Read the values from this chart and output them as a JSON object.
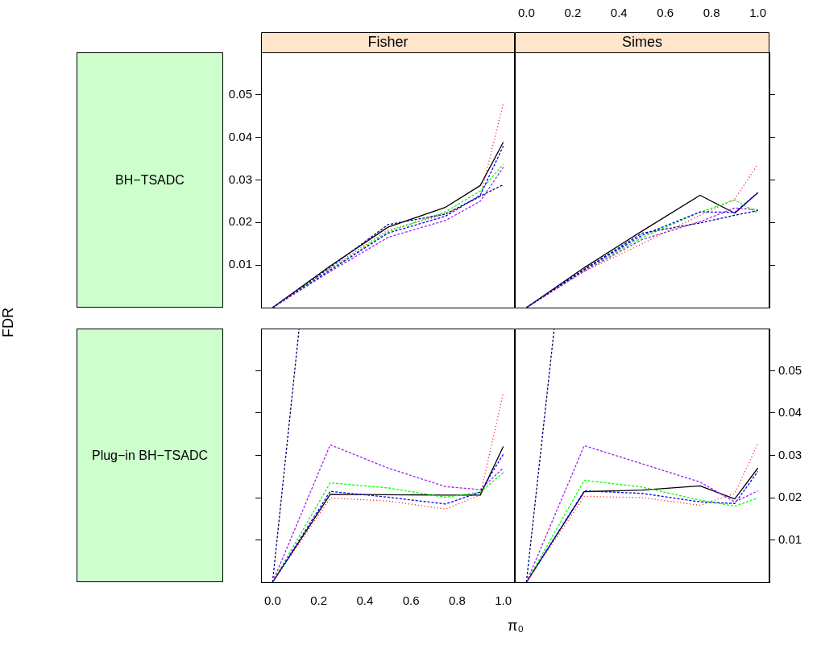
{
  "chart_data": [
    {
      "type": "line",
      "title": "Fisher",
      "subtitle": "BH−TSADC",
      "ylabel": "FDR",
      "x": [
        0,
        0.25,
        0.5,
        0.75,
        0.9,
        1
      ],
      "xlim": [
        -0.05,
        1.05
      ],
      "ylim": [
        0,
        0.06
      ],
      "xticks": [
        {
          "value": 0,
          "label": null
        },
        {
          "value": 0.2,
          "label": null
        },
        {
          "value": 0.4,
          "label": null
        },
        {
          "value": 0.6,
          "label": null
        },
        {
          "value": 0.8,
          "label": null
        },
        {
          "value": 1,
          "label": null
        }
      ],
      "yticks": [
        0.01,
        0.02,
        0.03,
        0.04,
        0.05
      ],
      "tick_labels": "y",
      "marker": "none",
      "series": [
        {
          "color": "#000000",
          "line_style": "solid",
          "values": [
            0,
            0.0098,
            0.0189,
            0.0236,
            0.0287,
            0.0389
          ]
        },
        {
          "color": "#ff0000",
          "line_style": "dotted",
          "values": [
            0,
            0.0093,
            0.0182,
            0.022,
            0.026,
            0.048
          ]
        },
        {
          "color": "#00ff00",
          "line_style": "dashed",
          "values": [
            0,
            0.009,
            0.0178,
            0.0225,
            0.0274,
            0.0337
          ]
        },
        {
          "color": "#0000ff",
          "line_style": "dashed",
          "values": [
            0,
            0.0088,
            0.0175,
            0.0215,
            0.0264,
            0.038
          ]
        },
        {
          "color": "#a020f0",
          "line_style": "dashed",
          "values": [
            0,
            0.0085,
            0.0165,
            0.0205,
            0.025,
            0.033
          ]
        },
        {
          "color": "#000080",
          "line_style": "dashed",
          "values": [
            0,
            0.0095,
            0.0195,
            0.022,
            0.0262,
            0.0289
          ]
        }
      ]
    },
    {
      "type": "line",
      "title": "Simes",
      "x": [
        0,
        0.25,
        0.5,
        0.75,
        0.9,
        1
      ],
      "xlim": [
        -0.05,
        1.05
      ],
      "ylim": [
        0,
        0.06
      ],
      "xticks": [
        {
          "value": 0,
          "label": "0.0"
        },
        {
          "value": 0.2,
          "label": "0.2"
        },
        {
          "value": 0.4,
          "label": "0.4"
        },
        {
          "value": 0.6,
          "label": "0.6"
        },
        {
          "value": 0.8,
          "label": "0.8"
        },
        {
          "value": 1,
          "label": "1.0"
        }
      ],
      "yticks": [
        {
          "value": 0.01,
          "label": null
        },
        {
          "value": 0.02,
          "label": null
        },
        {
          "value": 0.03,
          "label": null
        },
        {
          "value": 0.04,
          "label": null
        },
        {
          "value": 0.05,
          "label": null
        }
      ],
      "tick_labels": "x",
      "marker": "none",
      "series": [
        {
          "color": "#000000",
          "line_style": "solid",
          "values": [
            0,
            0.0094,
            0.018,
            0.0264,
            0.0222,
            0.027
          ]
        },
        {
          "color": "#ff0000",
          "line_style": "dotted",
          "values": [
            0,
            0.0085,
            0.015,
            0.0217,
            0.0255,
            0.0337
          ]
        },
        {
          "color": "#00ff00",
          "line_style": "dashed",
          "values": [
            0,
            0.0088,
            0.0165,
            0.0224,
            0.0253,
            0.0222
          ]
        },
        {
          "color": "#0000ff",
          "line_style": "dashed",
          "values": [
            0,
            0.009,
            0.017,
            0.0225,
            0.0224,
            0.027
          ]
        },
        {
          "color": "#a020f0",
          "line_style": "dashed",
          "values": [
            0,
            0.0086,
            0.016,
            0.0202,
            0.0234,
            0.023
          ]
        },
        {
          "color": "#000080",
          "line_style": "dashed",
          "values": [
            0,
            0.009,
            0.0175,
            0.0199,
            0.0217,
            0.0228
          ]
        }
      ]
    },
    {
      "type": "line",
      "subtitle": "Plug−in BH−TSADC",
      "xlabel": "π₀",
      "x": [
        0,
        0.25,
        0.5,
        0.75,
        0.9,
        1
      ],
      "xlim": [
        -0.05,
        1.05
      ],
      "ylim": [
        0,
        0.06
      ],
      "xticks": [
        {
          "value": 0,
          "label": "0.0"
        },
        {
          "value": 0.2,
          "label": "0.2"
        },
        {
          "value": 0.4,
          "label": "0.4"
        },
        {
          "value": 0.6,
          "label": "0.6"
        },
        {
          "value": 0.8,
          "label": "0.8"
        },
        {
          "value": 1,
          "label": "1.0"
        }
      ],
      "yticks": [
        {
          "value": 0.01,
          "label": null
        },
        {
          "value": 0.02,
          "label": null
        },
        {
          "value": 0.03,
          "label": null
        },
        {
          "value": 0.04,
          "label": null
        },
        {
          "value": 0.05,
          "label": null
        }
      ],
      "tick_labels": "x",
      "marker": "none",
      "series": [
        {
          "color": "#000000",
          "line_style": "solid",
          "values": [
            0,
            0.0208,
            0.0207,
            0.0206,
            0.0206,
            0.0321
          ]
        },
        {
          "color": "#ff0000",
          "line_style": "dotted",
          "values": [
            0,
            0.0199,
            0.0192,
            0.0173,
            0.0206,
            0.0448
          ]
        },
        {
          "color": "#00ff00",
          "line_style": "dashed",
          "values": [
            0,
            0.0235,
            0.0223,
            0.0201,
            0.0213,
            0.0259
          ]
        },
        {
          "color": "#0000ff",
          "line_style": "dashed",
          "values": [
            0,
            0.0215,
            0.0201,
            0.0185,
            0.0213,
            0.0303
          ]
        },
        {
          "color": "#a020f0",
          "line_style": "dashed",
          "values": [
            0,
            0.0325,
            0.027,
            0.0226,
            0.0219,
            0.027
          ]
        },
        {
          "color": "#000080",
          "line_style": "dashed",
          "x": [
            0,
            0.115
          ],
          "values": [
            0,
            0.06
          ]
        }
      ]
    },
    {
      "type": "line",
      "x": [
        0,
        0.25,
        0.5,
        0.75,
        0.9,
        1
      ],
      "xlim": [
        -0.05,
        1.05
      ],
      "ylim": [
        0,
        0.06
      ],
      "xticks": [
        {
          "value": 0,
          "label": null
        },
        {
          "value": 0.2,
          "label": null
        },
        {
          "value": 0.4,
          "label": null
        },
        {
          "value": 0.6,
          "label": null
        },
        {
          "value": 0.8,
          "label": null
        },
        {
          "value": 1,
          "label": null
        }
      ],
      "yticks": [
        0.01,
        0.02,
        0.03,
        0.04,
        0.05
      ],
      "tick_labels": "y",
      "marker": "none",
      "series": [
        {
          "color": "#000000",
          "line_style": "solid",
          "values": [
            0,
            0.0214,
            0.0218,
            0.0228,
            0.0197,
            0.027
          ]
        },
        {
          "color": "#ff0000",
          "line_style": "dotted",
          "values": [
            0,
            0.0203,
            0.02,
            0.0182,
            0.021,
            0.0328
          ]
        },
        {
          "color": "#00ff00",
          "line_style": "dashed",
          "values": [
            0,
            0.0241,
            0.0225,
            0.0194,
            0.018,
            0.0199
          ]
        },
        {
          "color": "#0000ff",
          "line_style": "dashed",
          "values": [
            0,
            0.0216,
            0.021,
            0.019,
            0.0186,
            0.0262
          ]
        },
        {
          "color": "#a020f0",
          "line_style": "dashed",
          "values": [
            0,
            0.0323,
            0.028,
            0.0237,
            0.019,
            0.0216
          ]
        },
        {
          "color": "#000080",
          "line_style": "dashed",
          "x": [
            0,
            0.12
          ],
          "values": [
            0,
            0.06
          ]
        }
      ]
    }
  ]
}
